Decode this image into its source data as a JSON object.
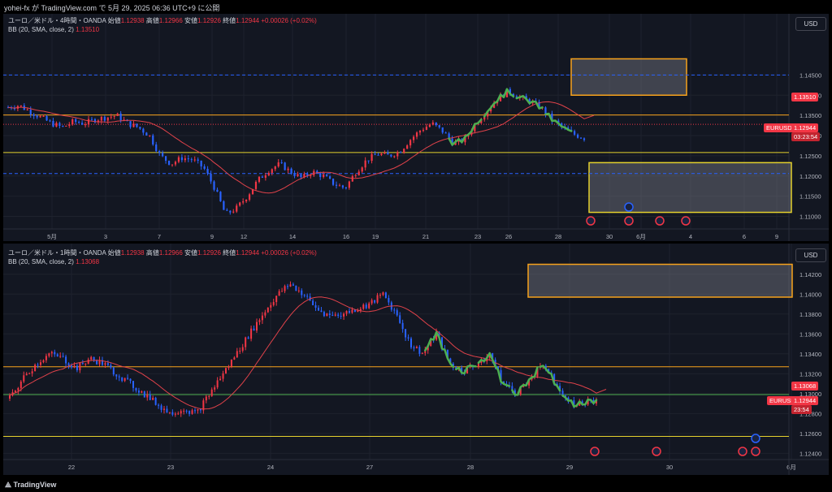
{
  "header": {
    "text": "yohei-fx が TradingView.com で 5月 29, 2025 06:36 UTC+9 に公開"
  },
  "footer": {
    "brand": "TradingView"
  },
  "colors": {
    "bg": "#131722",
    "up": "#f23645",
    "down": "#2962ff",
    "bb": "#e0424a",
    "orange": "#f7a21b",
    "yellow": "#e5d22d",
    "green": "#4caf50"
  },
  "top": {
    "legend": {
      "title": "ユーロ／米ドル・4時間・OANDA",
      "o_label": "始値",
      "o": "1.12938",
      "h_label": "高値",
      "h": "1.12966",
      "l_label": "安値",
      "l": "1.12926",
      "c_label": "終値",
      "c": "1.12944",
      "chg": "+0.00026 (+0.02%)",
      "bb_label": "BB (20, SMA, close, 2)",
      "bb_value": "1.13510"
    },
    "currency_btn": "USD",
    "price_tag": {
      "symbol": "EURUSD",
      "price": "1.12944",
      "countdown": "03:23:54"
    },
    "bb_tag": "1.13510"
  },
  "bottom": {
    "legend": {
      "title": "ユーロ／米ドル・1時間・OANDA",
      "o_label": "始値",
      "o": "1.12938",
      "h_label": "高値",
      "h": "1.12966",
      "l_label": "安値",
      "l": "1.12926",
      "c_label": "終値",
      "c": "1.12944",
      "chg": "+0.00026 (+0.02%)",
      "bb_label": "BB (20, SMA, close, 2)",
      "bb_value": "1.13068"
    },
    "currency_btn": "USD",
    "price_tag": {
      "symbol": "EURUSD",
      "price": "1.12944",
      "countdown": "23:54"
    },
    "bb_tag": "1.13068"
  },
  "chart_data": [
    {
      "type": "candlestick",
      "title": "ユーロ／米ドル・4時間・OANDA",
      "ylim": [
        1.1085,
        1.1505
      ],
      "y_ticks": [
        "1.14500",
        "1.14000",
        "1.13500",
        "1.13000",
        "1.12500",
        "1.12000",
        "1.11500",
        "1.11000"
      ],
      "x_ticks": [
        "5月",
        "3",
        "7",
        "9",
        "12",
        "14",
        "16",
        "19",
        "21",
        "23",
        "26",
        "28",
        "30",
        "6月",
        "4",
        "6",
        "9"
      ],
      "close_path": [
        1.137,
        1.1375,
        1.136,
        1.1345,
        1.133,
        1.132,
        1.1335,
        1.133,
        1.134,
        1.1345,
        1.135,
        1.133,
        1.132,
        1.13,
        1.125,
        1.123,
        1.1245,
        1.124,
        1.122,
        1.117,
        1.1105,
        1.112,
        1.115,
        1.119,
        1.1215,
        1.123,
        1.121,
        1.1195,
        1.121,
        1.12,
        1.118,
        1.117,
        1.121,
        1.124,
        1.1255,
        1.125,
        1.126,
        1.129,
        1.1315,
        1.133,
        1.131,
        1.128,
        1.129,
        1.133,
        1.136,
        1.139,
        1.141,
        1.1395,
        1.1385,
        1.137,
        1.134,
        1.132,
        1.1304,
        1.1294
      ],
      "horizontal_lines": [
        {
          "price": 1.145,
          "color": "#2962ff",
          "style": "dashed"
        },
        {
          "price": 1.1351,
          "color": "#f7a21b",
          "style": "solid"
        },
        {
          "price": 1.1328,
          "color": "#f23645",
          "style": "dotted"
        },
        {
          "price": 1.1258,
          "color": "#e5d22d",
          "style": "solid"
        },
        {
          "price": 1.1206,
          "color": "#2962ff",
          "style": "dashed"
        }
      ],
      "zones": [
        {
          "from": 1.14,
          "to": 1.149,
          "color": "#f7a21b"
        },
        {
          "from": 1.111,
          "to": 1.1233,
          "color": "#e5d22d"
        }
      ]
    },
    {
      "type": "candlestick",
      "title": "ユーロ／米ドル・1時間・OANDA",
      "ylim": [
        1.1237,
        1.1428
      ],
      "y_ticks": [
        "1.14200",
        "1.14000",
        "1.13800",
        "1.13600",
        "1.13400",
        "1.13200",
        "1.13000",
        "1.12800",
        "1.12600",
        "1.12400"
      ],
      "x_ticks": [
        "22",
        "23",
        "24",
        "27",
        "28",
        "29",
        "30",
        "6月"
      ],
      "close_path": [
        1.1295,
        1.1315,
        1.133,
        1.134,
        1.1335,
        1.1325,
        1.1335,
        1.133,
        1.132,
        1.131,
        1.13,
        1.129,
        1.128,
        1.1285,
        1.128,
        1.13,
        1.132,
        1.134,
        1.136,
        1.138,
        1.1398,
        1.141,
        1.14,
        1.1385,
        1.1378,
        1.138,
        1.1385,
        1.139,
        1.14,
        1.138,
        1.135,
        1.134,
        1.136,
        1.133,
        1.1322,
        1.133,
        1.134,
        1.131,
        1.13,
        1.1315,
        1.133,
        1.131,
        1.129,
        1.129,
        1.1294
      ],
      "horizontal_lines": [
        {
          "price": 1.1327,
          "color": "#f7a21b",
          "style": "solid"
        },
        {
          "price": 1.1299,
          "color": "#4caf50",
          "style": "solid"
        },
        {
          "price": 1.1257,
          "color": "#e5d22d",
          "style": "solid"
        }
      ],
      "zones": [
        {
          "from": 1.1397,
          "to": 1.143,
          "color": "#f7a21b"
        }
      ]
    }
  ]
}
